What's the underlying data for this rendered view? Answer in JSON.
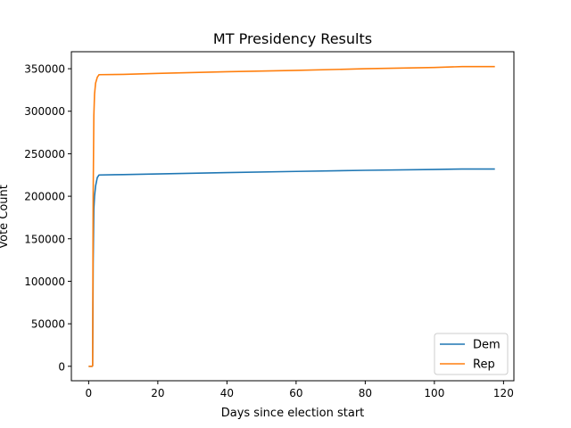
{
  "chart_data": {
    "type": "line",
    "title": "MT Presidency Results",
    "xlabel": "Days since election start",
    "ylabel": "Vote Count",
    "xlim": [
      -5,
      123
    ],
    "ylim": [
      -17000,
      370000
    ],
    "x_ticks": [
      0,
      20,
      40,
      60,
      80,
      100,
      120
    ],
    "y_ticks": [
      0,
      50000,
      100000,
      150000,
      200000,
      250000,
      300000,
      350000
    ],
    "grid": false,
    "legend_position": "lower-right",
    "series": [
      {
        "name": "Dem",
        "color": "#1f77b4",
        "x": [
          0,
          1.0,
          1.15,
          1.3,
          1.5,
          1.7,
          2.0,
          2.5,
          3.0,
          10,
          20,
          40,
          60,
          80,
          100,
          108,
          117.5
        ],
        "y": [
          0,
          0,
          600,
          120000,
          185000,
          200000,
          212000,
          222000,
          225000,
          225500,
          226300,
          227800,
          229200,
          230500,
          231500,
          232000,
          232000
        ]
      },
      {
        "name": "Rep",
        "color": "#ff7f0e",
        "x": [
          0,
          1.0,
          1.15,
          1.3,
          1.5,
          1.7,
          2.0,
          2.5,
          3.0,
          10,
          20,
          40,
          60,
          80,
          100,
          108,
          117.5
        ],
        "y": [
          0,
          0,
          1000,
          200000,
          295000,
          320000,
          333000,
          340000,
          343000,
          343300,
          344500,
          346500,
          348000,
          350000,
          351500,
          352500,
          352500
        ]
      }
    ]
  }
}
